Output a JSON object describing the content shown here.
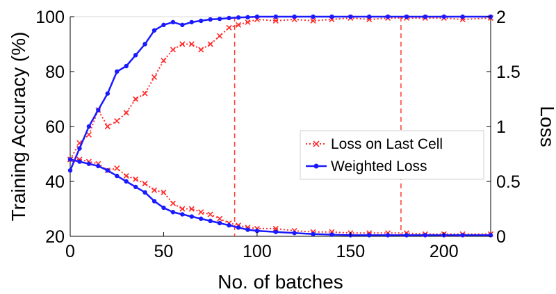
{
  "chart_data": {
    "type": "line",
    "xlabel": "No. of batches",
    "ylabel_left": "Training Accuracy (%)",
    "ylabel_right": "Loss",
    "xlim": [
      0,
      225
    ],
    "ylim_left": [
      20,
      100
    ],
    "ylim_right": [
      0,
      2
    ],
    "xticks": [
      0,
      50,
      100,
      150,
      200
    ],
    "yticks_left": [
      20,
      40,
      60,
      80,
      100
    ],
    "yticks_right": [
      "0",
      "0.5",
      "1",
      "1.5",
      "2"
    ],
    "ytick_values_right": [
      0,
      0.5,
      1,
      1.5,
      2
    ],
    "vlines": [
      {
        "x": 88,
        "color": "#ff3b30"
      },
      {
        "x": 177,
        "color": "#ff3b30"
      }
    ],
    "legend": {
      "placement": "center-right"
    },
    "grid": false,
    "series": [
      {
        "name": "Loss on Last Cell",
        "color": "#ff2a2a",
        "linestyle": "dotted",
        "marker": "x",
        "axis": "left",
        "x": [
          0,
          5,
          10,
          15,
          20,
          25,
          30,
          35,
          40,
          45,
          50,
          55,
          60,
          65,
          70,
          75,
          80,
          85,
          90,
          95,
          100,
          110,
          120,
          130,
          140,
          150,
          160,
          170,
          180,
          190,
          200,
          210,
          225
        ],
        "y": [
          48,
          54,
          57,
          66,
          60,
          62,
          65,
          70,
          72,
          78,
          84,
          88,
          90,
          90,
          88,
          90,
          93,
          96,
          97,
          98,
          99,
          98.5,
          99,
          98.5,
          99,
          99.5,
          99,
          99.5,
          99.5,
          99.5,
          99.5,
          99,
          99.5
        ]
      },
      {
        "name": "Weighted Loss",
        "color": "#1a1aff",
        "linestyle": "solid",
        "marker": "o",
        "axis": "left",
        "x": [
          0,
          5,
          10,
          15,
          20,
          25,
          30,
          35,
          40,
          45,
          50,
          55,
          60,
          65,
          70,
          75,
          80,
          85,
          90,
          95,
          100,
          110,
          120,
          130,
          140,
          150,
          160,
          170,
          180,
          190,
          200,
          210,
          225
        ],
        "y": [
          44,
          52,
          60,
          66,
          72,
          80,
          82,
          86,
          90,
          95,
          97,
          98,
          97,
          98,
          98.5,
          99,
          99.2,
          99.5,
          99.7,
          99.8,
          100,
          100,
          100,
          100,
          100,
          100,
          100,
          100,
          100,
          100,
          100,
          100,
          100
        ]
      },
      {
        "name": "",
        "color": "#ff2a2a",
        "linestyle": "dotted",
        "marker": "x",
        "axis": "right",
        "x": [
          0,
          5,
          10,
          15,
          20,
          25,
          30,
          35,
          40,
          45,
          50,
          55,
          60,
          65,
          70,
          75,
          80,
          85,
          90,
          95,
          100,
          110,
          120,
          130,
          140,
          150,
          160,
          170,
          180,
          190,
          200,
          210,
          225
        ],
        "y": [
          0.7,
          0.7,
          0.68,
          0.66,
          0.6,
          0.62,
          0.55,
          0.52,
          0.48,
          0.42,
          0.4,
          0.3,
          0.25,
          0.25,
          0.22,
          0.2,
          0.16,
          0.12,
          0.1,
          0.08,
          0.07,
          0.07,
          0.05,
          0.04,
          0.04,
          0.03,
          0.03,
          0.03,
          0.03,
          0.02,
          0.02,
          0.02,
          0.02
        ]
      },
      {
        "name": "",
        "color": "#1a1aff",
        "linestyle": "solid",
        "marker": "o",
        "axis": "right",
        "x": [
          0,
          5,
          10,
          15,
          20,
          25,
          30,
          35,
          40,
          45,
          50,
          55,
          60,
          65,
          70,
          75,
          80,
          85,
          90,
          95,
          100,
          110,
          120,
          130,
          140,
          150,
          160,
          170,
          180,
          190,
          200,
          210,
          225
        ],
        "y": [
          0.7,
          0.68,
          0.66,
          0.64,
          0.6,
          0.55,
          0.5,
          0.45,
          0.4,
          0.32,
          0.26,
          0.22,
          0.2,
          0.18,
          0.16,
          0.14,
          0.12,
          0.1,
          0.08,
          0.06,
          0.05,
          0.04,
          0.03,
          0.02,
          0.015,
          0.01,
          0.01,
          0.01,
          0.01,
          0.01,
          0.01,
          0.01,
          0.01
        ]
      }
    ]
  }
}
